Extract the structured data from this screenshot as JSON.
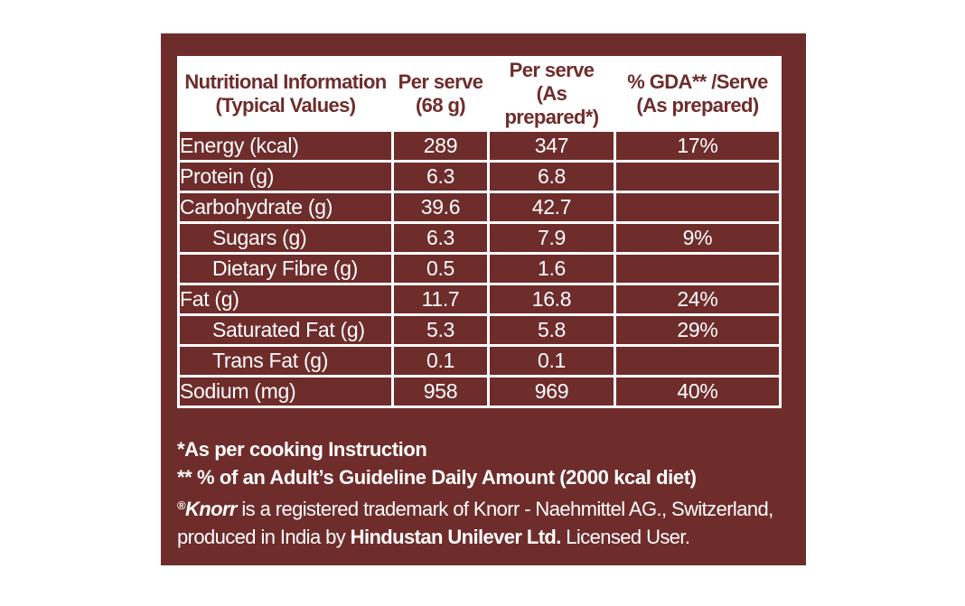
{
  "table": {
    "headers": [
      {
        "line1": "Nutritional Information",
        "line2": "(Typical Values)"
      },
      {
        "line1": "Per serve",
        "line2": "(68 g)"
      },
      {
        "line1": "Per serve",
        "line2": "(As prepared*)"
      },
      {
        "line1": "% GDA** /Serve",
        "line2": "(As prepared)"
      }
    ],
    "rows": [
      {
        "label": "Energy (kcal)",
        "per_serve": "289",
        "as_prepared": "347",
        "gda": "17%"
      },
      {
        "label": "Protein (g)",
        "per_serve": "6.3",
        "as_prepared": "6.8",
        "gda": ""
      },
      {
        "label": "Carbohydrate (g)",
        "per_serve": "39.6",
        "as_prepared": "42.7",
        "gda": ""
      },
      {
        "label": "Sugars (g)",
        "per_serve": "6.3",
        "as_prepared": "7.9",
        "gda": "9%"
      },
      {
        "label": "Dietary Fibre (g)",
        "per_serve": "0.5",
        "as_prepared": "1.6",
        "gda": ""
      },
      {
        "label": "Fat (g)",
        "per_serve": "11.7",
        "as_prepared": "16.8",
        "gda": "24%"
      },
      {
        "label": "Saturated Fat (g)",
        "per_serve": "5.3",
        "as_prepared": "5.8",
        "gda": "29%"
      },
      {
        "label": "Trans Fat (g)",
        "per_serve": "0.1",
        "as_prepared": "0.1",
        "gda": ""
      },
      {
        "label": "Sodium (mg)",
        "per_serve": "958",
        "as_prepared": "969",
        "gda": "40%"
      }
    ]
  },
  "footnotes": {
    "cooking": "*As per cooking Instruction",
    "gda": "** % of an Adult’s Guideline Daily Amount (2000 kcal diet)",
    "trademark_symbol": "®",
    "brand": "Knorr",
    "trademark_text": " is a registered trademark of Knorr - Naehmittel AG., Switzerland,",
    "produced_prefix": "produced in India by ",
    "company": "Hindustan Unilever Ltd.",
    "produced_suffix": " Licensed User."
  },
  "colors": {
    "panel": "#6e2c2b",
    "text": "#ffffff"
  }
}
